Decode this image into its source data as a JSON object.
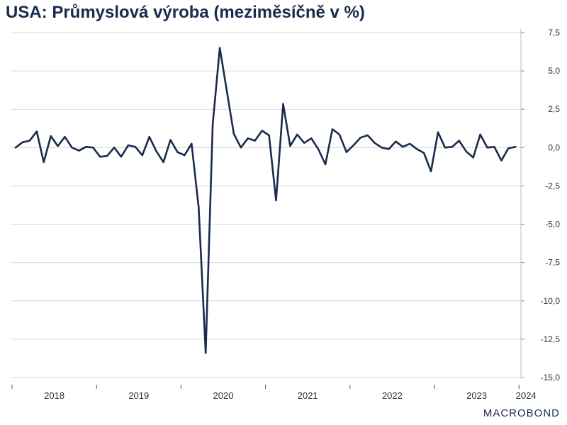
{
  "title": "USA: Průmyslová výroba (meziměsíčně v %)",
  "logo": "MACROBOND",
  "colors": {
    "line": "#1a2b4c",
    "grid": "#d9d9d9",
    "text": "#333333"
  },
  "chart_data": {
    "type": "line",
    "title": "USA: Průmyslová výroba (meziměsíčně v %)",
    "xlabel": "",
    "ylabel": "",
    "x_start": "2018-01",
    "x_ticks": [
      "2018",
      "2019",
      "2020",
      "2021",
      "2022",
      "2023",
      "2024"
    ],
    "y_ticks": [
      "7,5",
      "5,0",
      "2,5",
      "0,0",
      "-2,5",
      "-5,0",
      "-7,5",
      "-10,0",
      "-12,5",
      "-15,0"
    ],
    "ylim": [
      -15,
      7.5
    ],
    "grid": true,
    "y_axis_side": "right",
    "series": [
      {
        "values": [
          0.0,
          0.35,
          0.45,
          1.05,
          -0.95,
          0.75,
          0.1,
          0.7,
          0.0,
          -0.2,
          0.05,
          0.0,
          -0.6,
          -0.55,
          0.0,
          -0.6,
          0.15,
          0.05,
          -0.5,
          0.7,
          -0.25,
          -0.95,
          0.5,
          -0.3,
          -0.5,
          0.25,
          -3.9,
          -13.4,
          1.5,
          6.5,
          3.7,
          0.9,
          0.0,
          0.6,
          0.45,
          1.1,
          0.8,
          -3.45,
          2.85,
          0.1,
          0.85,
          0.3,
          0.6,
          -0.1,
          -1.1,
          1.2,
          0.85,
          -0.3,
          0.15,
          0.65,
          0.8,
          0.3,
          0.0,
          -0.1,
          0.4,
          0.05,
          0.25,
          -0.1,
          -0.35,
          -1.55,
          1.0,
          0.0,
          0.05,
          0.45,
          -0.25,
          -0.65,
          0.85,
          0.0,
          0.05,
          -0.85,
          -0.05,
          0.05
        ]
      }
    ]
  }
}
